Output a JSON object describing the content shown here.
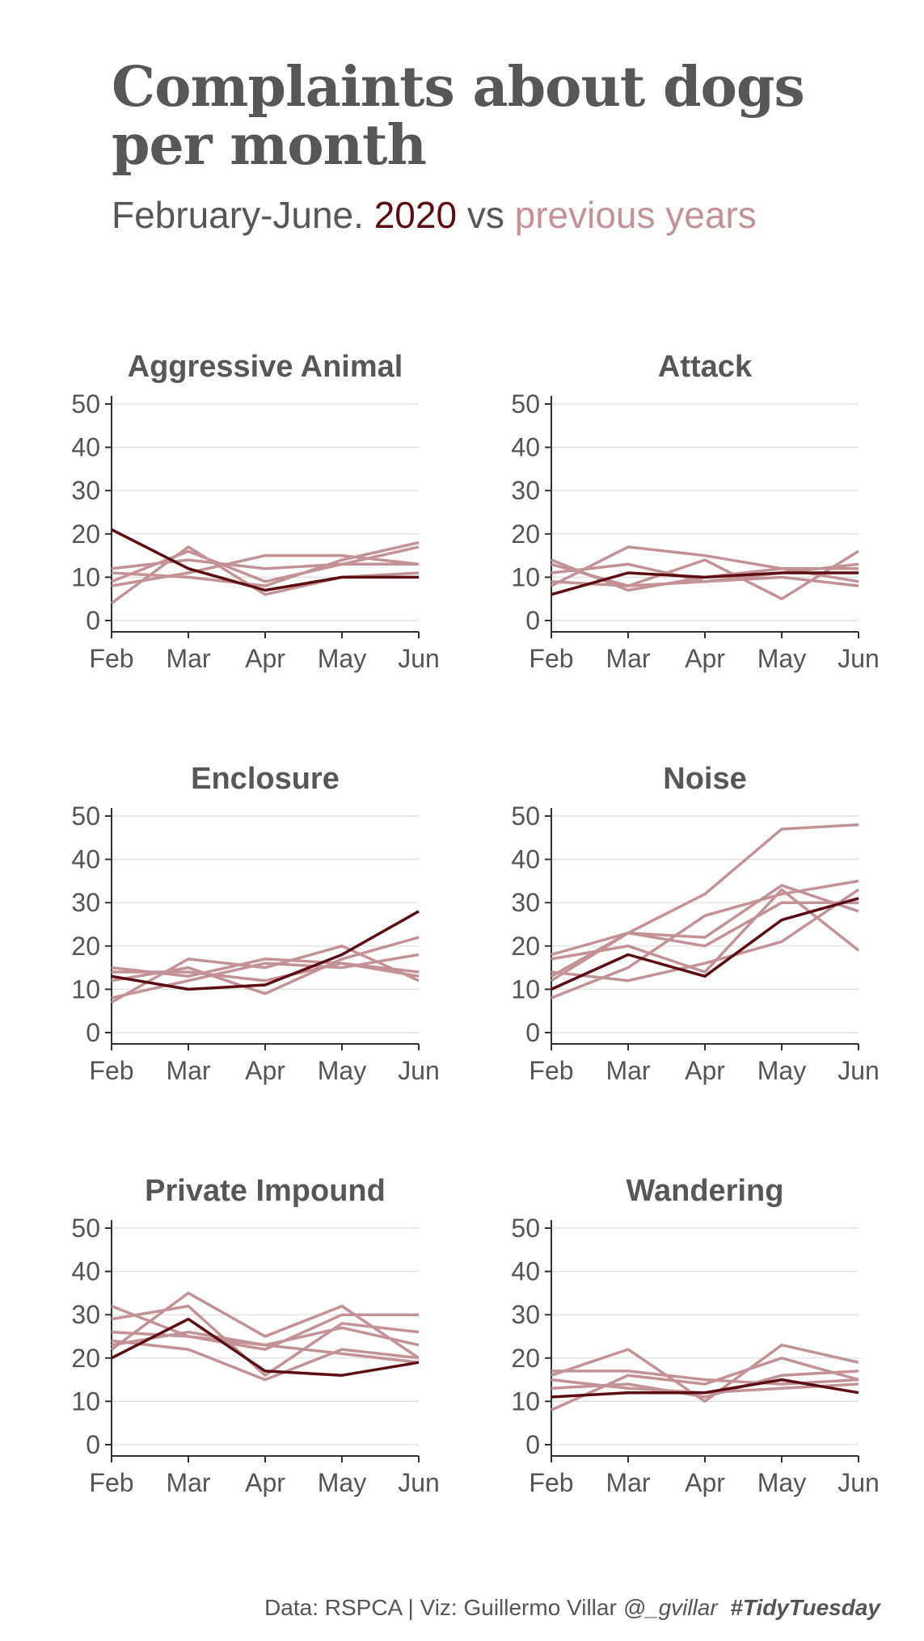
{
  "header": {
    "title_line1": "Complaints about dogs",
    "title_line2": "per month",
    "subtitle_prefix": "February-June. ",
    "subtitle_current": "2020",
    "subtitle_mid": " vs ",
    "subtitle_previous": "previous years"
  },
  "caption": {
    "source": "Data: RSPCA | Viz: Guillermo Villar ",
    "handle": "@_gvillar",
    "hashtag": "#TidyTuesday"
  },
  "colors": {
    "current": "#5c0d13",
    "previous": "#c39297",
    "text": "#555555",
    "grid": "#dedede",
    "axis": "#333333"
  },
  "chart_data": [
    {
      "type": "line",
      "title": "Aggressive Animal",
      "categories": [
        "Feb",
        "Mar",
        "Apr",
        "May",
        "Jun"
      ],
      "ylim": [
        0,
        50
      ],
      "yticks": [
        0,
        10,
        20,
        30,
        40,
        50
      ],
      "current": [
        21,
        12,
        7,
        10,
        10
      ],
      "previous": [
        [
          12,
          14,
          12,
          13,
          13
        ],
        [
          9,
          16,
          9,
          13,
          17
        ],
        [
          4,
          17,
          6,
          10,
          11
        ],
        [
          8,
          11,
          15,
          15,
          13
        ],
        [
          11,
          10,
          8,
          14,
          18
        ]
      ]
    },
    {
      "type": "line",
      "title": "Attack",
      "categories": [
        "Feb",
        "Mar",
        "Apr",
        "May",
        "Jun"
      ],
      "ylim": [
        0,
        50
      ],
      "yticks": [
        0,
        10,
        20,
        30,
        40,
        50
      ],
      "current": [
        6,
        11,
        10,
        11,
        11
      ],
      "previous": [
        [
          14,
          7,
          10,
          12,
          12
        ],
        [
          8,
          17,
          15,
          12,
          9
        ],
        [
          11,
          13,
          9,
          10,
          8
        ],
        [
          13,
          8,
          14,
          5,
          16
        ],
        [
          9,
          8,
          9,
          11,
          13
        ]
      ]
    },
    {
      "type": "line",
      "title": "Enclosure",
      "categories": [
        "Feb",
        "Mar",
        "Apr",
        "May",
        "Jun"
      ],
      "ylim": [
        0,
        50
      ],
      "yticks": [
        0,
        10,
        20,
        30,
        40,
        50
      ],
      "current": [
        13,
        10,
        11,
        18,
        28
      ],
      "previous": [
        [
          15,
          13,
          17,
          16,
          13
        ],
        [
          7,
          17,
          15,
          20,
          12
        ],
        [
          12,
          15,
          9,
          17,
          22
        ],
        [
          8,
          12,
          16,
          15,
          18
        ],
        [
          14,
          14,
          12,
          16,
          14
        ]
      ]
    },
    {
      "type": "line",
      "title": "Noise",
      "categories": [
        "Feb",
        "Mar",
        "Apr",
        "May",
        "Jun"
      ],
      "ylim": [
        0,
        50
      ],
      "yticks": [
        0,
        10,
        20,
        30,
        40,
        50
      ],
      "current": [
        10,
        18,
        13,
        26,
        31
      ],
      "previous": [
        [
          18,
          23,
          32,
          47,
          48
        ],
        [
          12,
          23,
          22,
          34,
          28
        ],
        [
          17,
          20,
          14,
          33,
          19
        ],
        [
          14,
          12,
          16,
          21,
          33
        ],
        [
          8,
          15,
          27,
          32,
          35
        ],
        [
          13,
          23,
          20,
          30,
          30
        ]
      ]
    },
    {
      "type": "line",
      "title": "Private Impound",
      "categories": [
        "Feb",
        "Mar",
        "Apr",
        "May",
        "Jun"
      ],
      "ylim": [
        0,
        50
      ],
      "yticks": [
        0,
        10,
        20,
        30,
        40,
        50
      ],
      "current": [
        20,
        29,
        17,
        16,
        19
      ],
      "previous": [
        [
          32,
          25,
          22,
          30,
          30
        ],
        [
          22,
          35,
          25,
          32,
          20
        ],
        [
          24,
          22,
          15,
          22,
          20
        ],
        [
          29,
          32,
          16,
          28,
          26
        ],
        [
          23,
          26,
          23,
          27,
          23
        ],
        [
          26,
          25,
          23,
          21,
          19
        ]
      ]
    },
    {
      "type": "line",
      "title": "Wandering",
      "categories": [
        "Feb",
        "Mar",
        "Apr",
        "May",
        "Jun"
      ],
      "ylim": [
        0,
        50
      ],
      "yticks": [
        0,
        10,
        20,
        30,
        40,
        50
      ],
      "current": [
        11,
        12,
        12,
        15,
        12
      ],
      "previous": [
        [
          16,
          22,
          10,
          23,
          19
        ],
        [
          8,
          16,
          14,
          20,
          15
        ],
        [
          17,
          17,
          15,
          14,
          15
        ],
        [
          13,
          14,
          11,
          16,
          17
        ],
        [
          15,
          13,
          12,
          13,
          14
        ]
      ]
    }
  ]
}
